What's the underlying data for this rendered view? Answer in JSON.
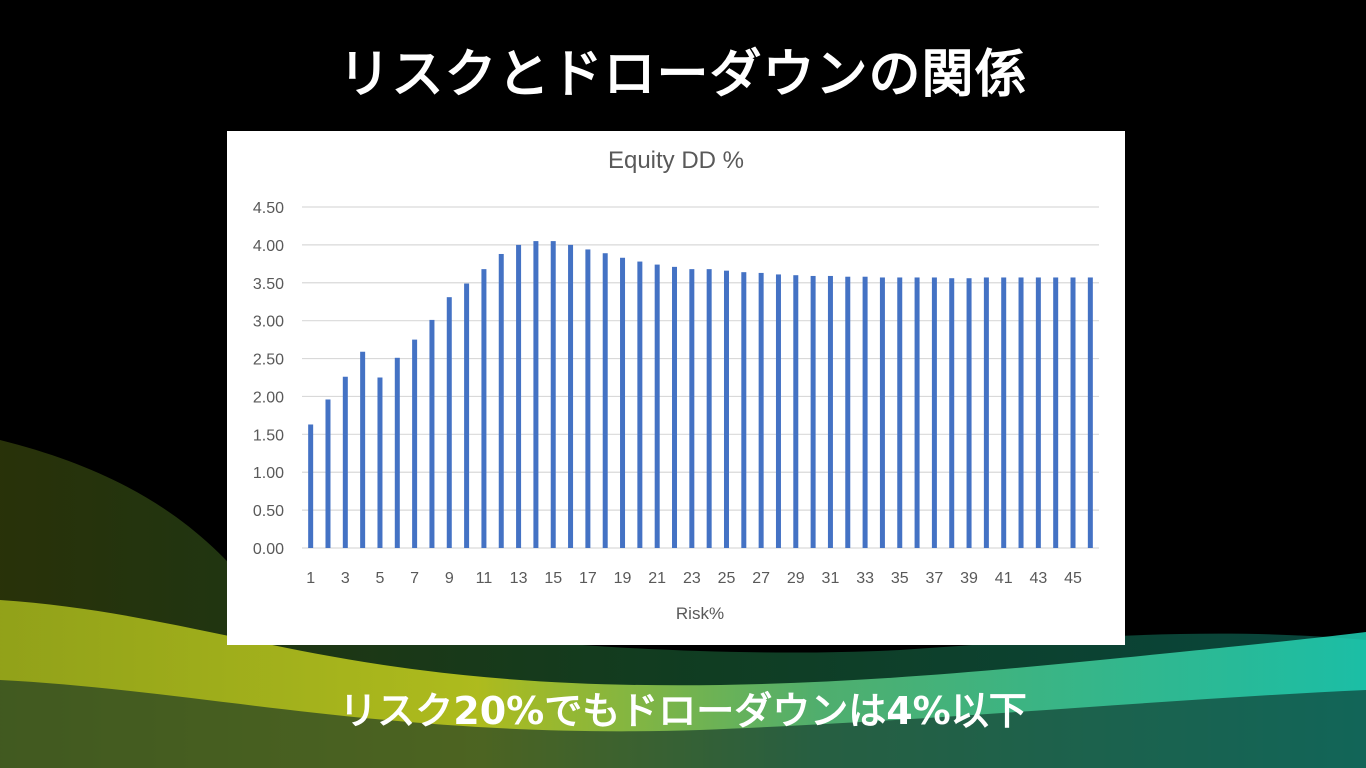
{
  "slide": {
    "title": "リスクとドローダウンの関係",
    "caption": "リスク20%でもドローダウンは4%以下"
  },
  "colors": {
    "background": "#000000",
    "bar": "#4472C4",
    "gridline": "#D9D9D9",
    "panel": "#FFFFFF",
    "wave_yellow": "#C8D21E",
    "wave_teal": "#1FD3B8"
  },
  "chart_data": {
    "type": "bar",
    "title": "Equity DD %",
    "xlabel": "Risk%",
    "ylabel": "",
    "ylim": [
      0,
      4.5
    ],
    "y_ticks": [
      "0.00",
      "0.50",
      "1.00",
      "1.50",
      "2.00",
      "2.50",
      "3.00",
      "3.50",
      "4.00",
      "4.50"
    ],
    "x_tick_labels": [
      "1",
      "3",
      "5",
      "7",
      "9",
      "11",
      "13",
      "15",
      "17",
      "19",
      "21",
      "23",
      "25",
      "27",
      "29",
      "31",
      "33",
      "35",
      "37",
      "39",
      "41",
      "43",
      "45"
    ],
    "grid": true,
    "legend": "none",
    "categories": [
      1,
      2,
      3,
      4,
      5,
      6,
      7,
      8,
      9,
      10,
      11,
      12,
      13,
      14,
      15,
      16,
      17,
      18,
      19,
      20,
      21,
      22,
      23,
      24,
      25,
      26,
      27,
      28,
      29,
      30,
      31,
      32,
      33,
      34,
      35,
      36,
      37,
      38,
      39,
      40,
      41,
      42,
      43,
      44,
      45,
      46
    ],
    "values": [
      1.63,
      1.96,
      2.26,
      2.59,
      2.25,
      2.51,
      2.75,
      3.01,
      3.31,
      3.49,
      3.68,
      3.88,
      4.0,
      4.05,
      4.05,
      4.0,
      3.94,
      3.89,
      3.83,
      3.78,
      3.74,
      3.71,
      3.68,
      3.68,
      3.66,
      3.64,
      3.63,
      3.61,
      3.6,
      3.59,
      3.59,
      3.58,
      3.58,
      3.57,
      3.57,
      3.57,
      3.57,
      3.56,
      3.56,
      3.57,
      3.57,
      3.57,
      3.57,
      3.57,
      3.57,
      3.57
    ]
  }
}
